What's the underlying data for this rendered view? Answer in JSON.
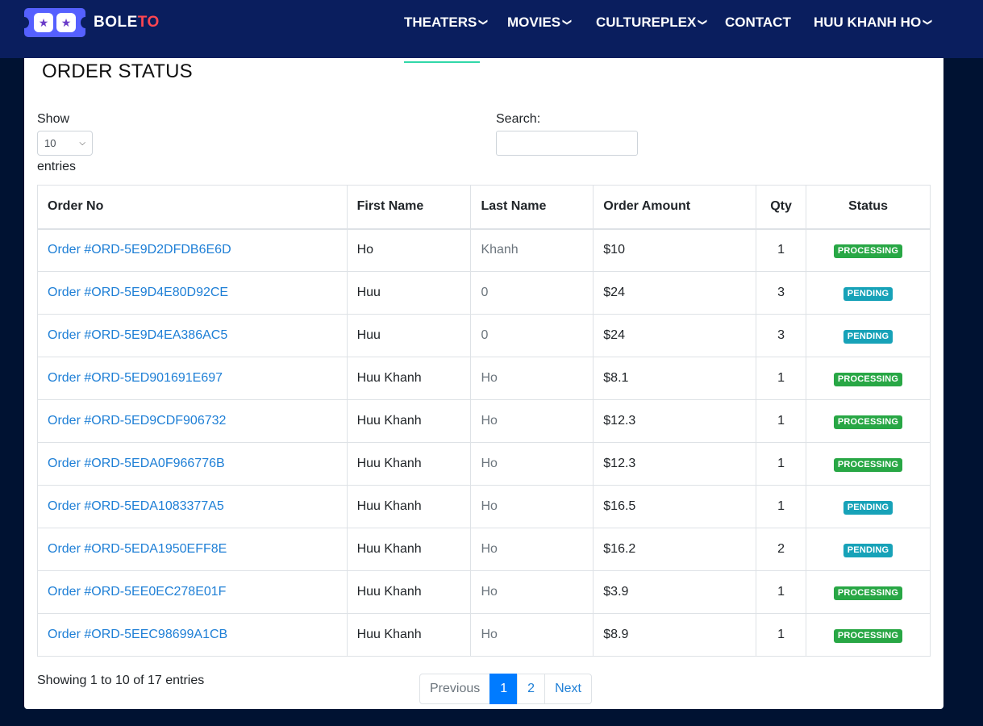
{
  "brand": {
    "part_a": "BOLE",
    "part_b": "TO"
  },
  "nav": {
    "theaters": "THEATERS",
    "movies": "MOVIES",
    "cultureplex": "CULTUREPLEX",
    "contact": "CONTACT",
    "user": "HUU KHANH HO"
  },
  "page": {
    "title": "ORDER STATUS"
  },
  "controls": {
    "show_label": "Show",
    "entries_value": "10",
    "entries_label": "entries",
    "search_label": "Search:",
    "search_value": ""
  },
  "table": {
    "headers": {
      "order_no": "Order No",
      "first_name": "First Name",
      "last_name": "Last Name",
      "amount": "Order Amount",
      "qty": "Qty",
      "status": "Status"
    },
    "rows": [
      {
        "order": "Order #ORD-5E9D2DFDB6E6D",
        "first": "Ho",
        "last": "Khanh",
        "amount": "$10",
        "qty": "1",
        "status": "PROCESSING"
      },
      {
        "order": "Order #ORD-5E9D4E80D92CE",
        "first": "Huu",
        "last": "0",
        "amount": "$24",
        "qty": "3",
        "status": "PENDING"
      },
      {
        "order": "Order #ORD-5E9D4EA386AC5",
        "first": "Huu",
        "last": "0",
        "amount": "$24",
        "qty": "3",
        "status": "PENDING"
      },
      {
        "order": "Order #ORD-5ED901691E697",
        "first": "Huu Khanh",
        "last": "Ho",
        "amount": "$8.1",
        "qty": "1",
        "status": "PROCESSING"
      },
      {
        "order": "Order #ORD-5ED9CDF906732",
        "first": "Huu Khanh",
        "last": "Ho",
        "amount": "$12.3",
        "qty": "1",
        "status": "PROCESSING"
      },
      {
        "order": "Order #ORD-5EDA0F966776B",
        "first": "Huu Khanh",
        "last": "Ho",
        "amount": "$12.3",
        "qty": "1",
        "status": "PROCESSING"
      },
      {
        "order": "Order #ORD-5EDA1083377A5",
        "first": "Huu Khanh",
        "last": "Ho",
        "amount": "$16.5",
        "qty": "1",
        "status": "PENDING"
      },
      {
        "order": "Order #ORD-5EDA1950EFF8E",
        "first": "Huu Khanh",
        "last": "Ho",
        "amount": "$16.2",
        "qty": "2",
        "status": "PENDING"
      },
      {
        "order": "Order #ORD-5EE0EC278E01F",
        "first": "Huu Khanh",
        "last": "Ho",
        "amount": "$3.9",
        "qty": "1",
        "status": "PROCESSING"
      },
      {
        "order": "Order #ORD-5EEC98699A1CB",
        "first": "Huu Khanh",
        "last": "Ho",
        "amount": "$8.9",
        "qty": "1",
        "status": "PROCESSING"
      }
    ]
  },
  "info": "Showing 1 to 10 of 17 entries",
  "pagination": {
    "previous": "Previous",
    "page1": "1",
    "page2": "2",
    "next": "Next"
  },
  "colors": {
    "nav_bg": "#0a1e5e",
    "page_bg": "#001232",
    "processing": "#28a745",
    "pending": "#17a2b8",
    "link": "#1e7fd6",
    "active_page": "#007bff",
    "accent": "#31d7a9",
    "brand_red": "#ff4651"
  },
  "icons": {
    "dropdown": "chevron-down-icon",
    "logo": "ticket-logo-icon"
  }
}
